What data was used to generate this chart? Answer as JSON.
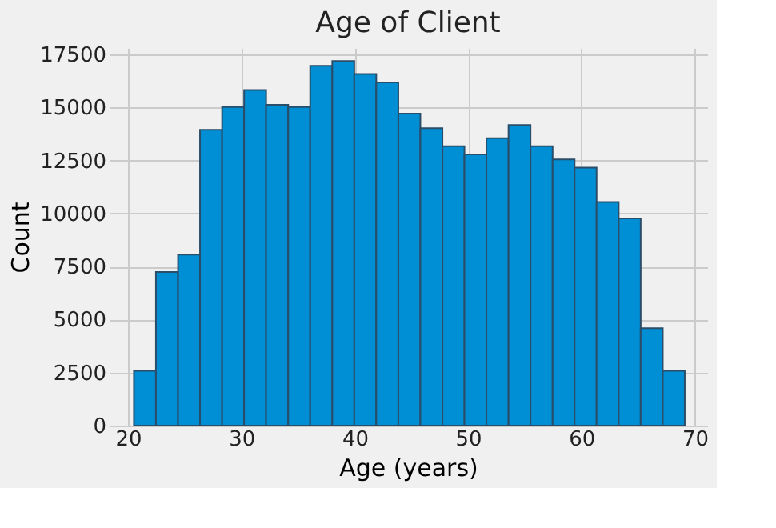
{
  "chart_data": {
    "type": "histogram",
    "title": "Age of Client",
    "xlabel": "Age (years)",
    "ylabel": "Count",
    "bins": [
      20.52,
      22.46,
      24.41,
      26.35,
      28.3,
      30.24,
      32.18,
      34.13,
      36.07,
      38.02,
      39.96,
      41.9,
      43.85,
      45.79,
      47.74,
      49.68,
      51.62,
      53.57,
      55.51,
      57.46,
      59.4,
      61.34,
      63.29,
      65.23,
      67.18,
      69.12
    ],
    "values": [
      2580,
      7240,
      8060,
      13940,
      15020,
      15820,
      15120,
      15020,
      16960,
      17190,
      16570,
      16180,
      14710,
      14020,
      13170,
      12780,
      13550,
      14170,
      13170,
      12550,
      12160,
      10540,
      9770,
      4590,
      2580
    ],
    "color": "#008fd5",
    "xlim": [
      18.3,
      71.1
    ],
    "xticks": [
      20,
      30,
      40,
      50,
      60,
      70
    ],
    "ylim": [
      0,
      17800
    ],
    "yticks": [
      0,
      2500,
      5000,
      7500,
      10000,
      12500,
      15000,
      17500
    ],
    "grid": true
  }
}
